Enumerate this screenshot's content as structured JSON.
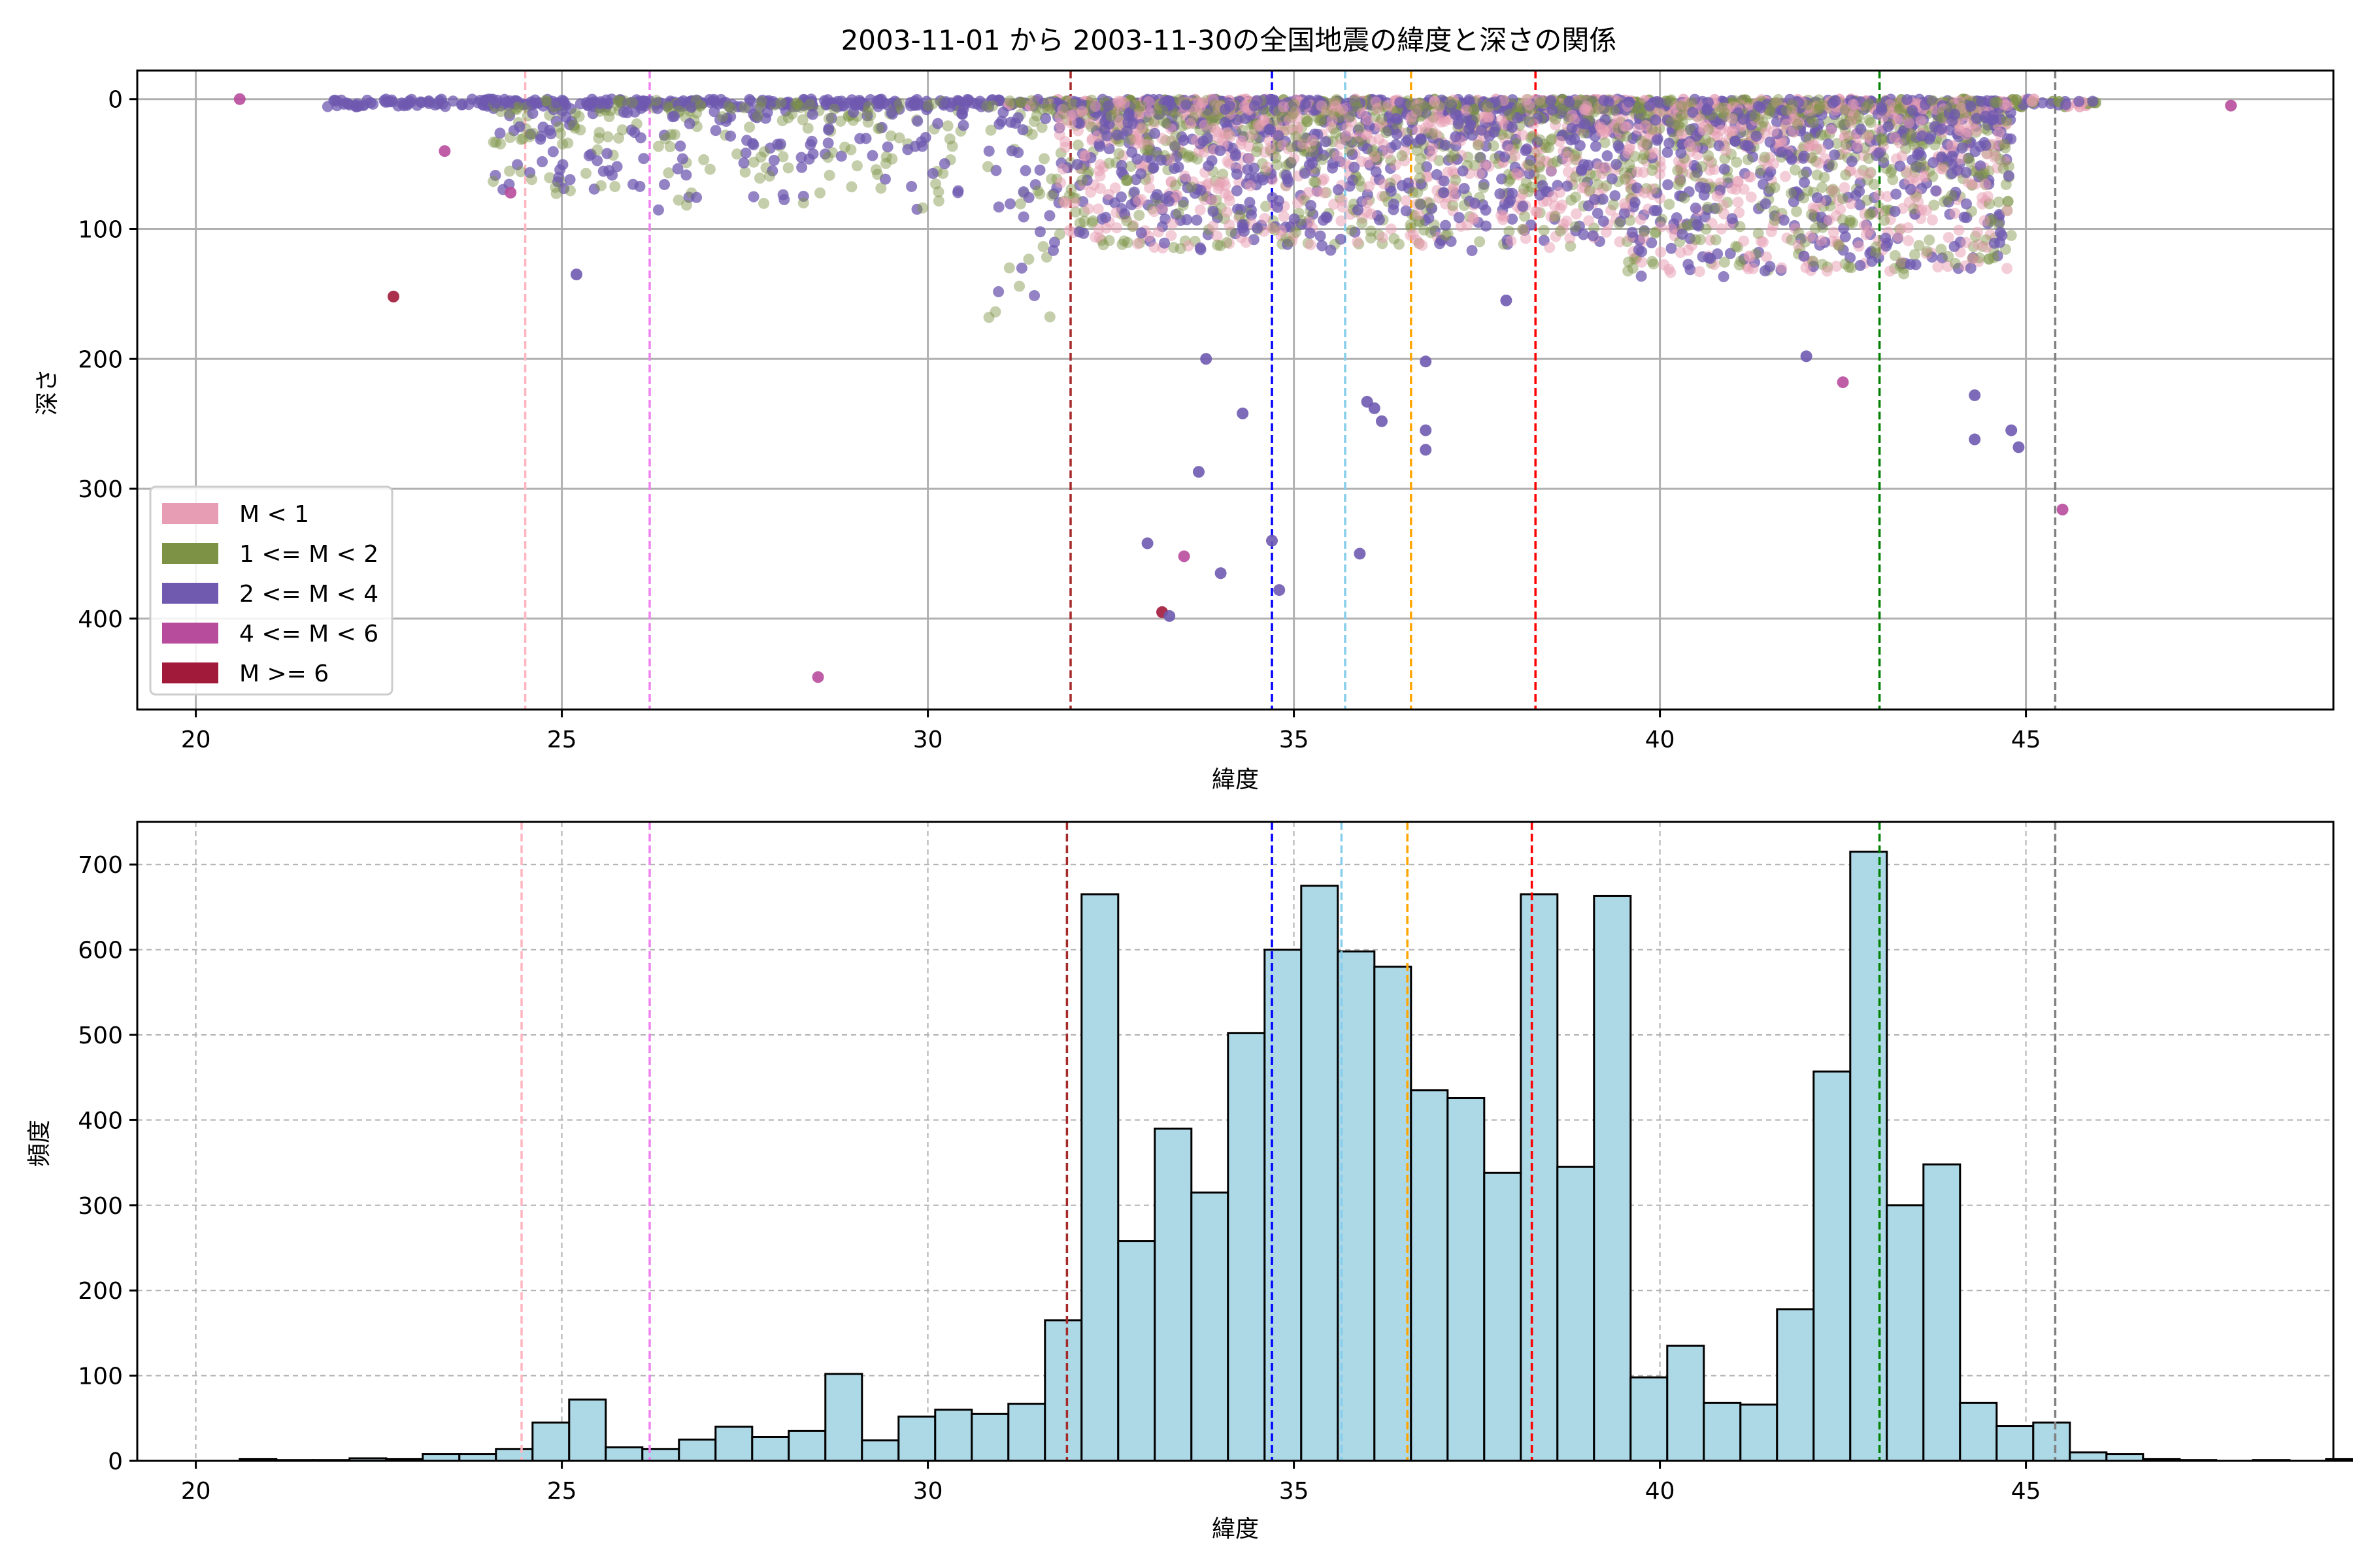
{
  "figure": {
    "title": "2003-11-01 から 2003-11-30の全国地震の緯度と深さの関係"
  },
  "chart_data": [
    {
      "type": "scatter",
      "xlabel": "緯度",
      "ylabel": "深さ",
      "xlim": [
        19.2,
        49.2
      ],
      "ylim": [
        470,
        -22
      ],
      "y_inverted": true,
      "x_ticks": [
        20,
        25,
        30,
        35,
        40,
        45
      ],
      "y_ticks": [
        0,
        100,
        200,
        300,
        400
      ],
      "grid": true,
      "legend_position": "lower-left",
      "series": [
        {
          "name": "M < 1",
          "color": "#e79db4"
        },
        {
          "name": "1 <= M < 2",
          "color": "#7d9244"
        },
        {
          "name": "2 <= M < 4",
          "color": "#6f5ab0"
        },
        {
          "name": "4 <= M < 6",
          "color": "#b84c9c"
        },
        {
          "name": "M >= 6",
          "color": "#a11a3a"
        }
      ],
      "outlier_points": [
        {
          "x": 20.6,
          "y": 0,
          "series": 3
        },
        {
          "x": 22.7,
          "y": 152,
          "series": 4
        },
        {
          "x": 23.4,
          "y": 40,
          "series": 3
        },
        {
          "x": 24.3,
          "y": 72,
          "series": 3
        },
        {
          "x": 25.2,
          "y": 135,
          "series": 2
        },
        {
          "x": 28.5,
          "y": 445,
          "series": 3
        },
        {
          "x": 33.0,
          "y": 342,
          "series": 2
        },
        {
          "x": 33.2,
          "y": 395,
          "series": 4
        },
        {
          "x": 33.3,
          "y": 398,
          "series": 2
        },
        {
          "x": 33.5,
          "y": 352,
          "series": 3
        },
        {
          "x": 33.7,
          "y": 287,
          "series": 2
        },
        {
          "x": 33.8,
          "y": 200,
          "series": 2
        },
        {
          "x": 34.0,
          "y": 365,
          "series": 2
        },
        {
          "x": 34.3,
          "y": 242,
          "series": 2
        },
        {
          "x": 34.7,
          "y": 340,
          "series": 2
        },
        {
          "x": 34.8,
          "y": 378,
          "series": 2
        },
        {
          "x": 35.9,
          "y": 350,
          "series": 2
        },
        {
          "x": 36.0,
          "y": 233,
          "series": 2
        },
        {
          "x": 36.1,
          "y": 238,
          "series": 2
        },
        {
          "x": 36.2,
          "y": 248,
          "series": 2
        },
        {
          "x": 36.8,
          "y": 270,
          "series": 2
        },
        {
          "x": 36.8,
          "y": 255,
          "series": 2
        },
        {
          "x": 36.8,
          "y": 202,
          "series": 2
        },
        {
          "x": 37.9,
          "y": 155,
          "series": 2
        },
        {
          "x": 42.0,
          "y": 198,
          "series": 2
        },
        {
          "x": 42.5,
          "y": 218,
          "series": 3
        },
        {
          "x": 44.3,
          "y": 228,
          "series": 2
        },
        {
          "x": 44.3,
          "y": 262,
          "series": 2
        },
        {
          "x": 44.8,
          "y": 255,
          "series": 2
        },
        {
          "x": 44.9,
          "y": 268,
          "series": 2
        },
        {
          "x": 45.5,
          "y": 316,
          "series": 3
        },
        {
          "x": 47.8,
          "y": 5,
          "series": 3
        }
      ],
      "vlines": [
        {
          "x": 24.5,
          "color": "#ffb6c1"
        },
        {
          "x": 26.2,
          "color": "#ee82ee"
        },
        {
          "x": 31.95,
          "color": "#a52a2a"
        },
        {
          "x": 34.7,
          "color": "#0000ff"
        },
        {
          "x": 35.7,
          "color": "#87ceeb"
        },
        {
          "x": 36.6,
          "color": "#ffa500"
        },
        {
          "x": 38.3,
          "color": "#ff0000"
        },
        {
          "x": 43.0,
          "color": "#008000"
        },
        {
          "x": 45.4,
          "color": "#808080"
        }
      ]
    },
    {
      "type": "bar",
      "xlabel": "緯度",
      "ylabel": "頻度",
      "xlim": [
        19.2,
        49.2
      ],
      "ylim": [
        0,
        750
      ],
      "x_ticks": [
        20,
        25,
        30,
        35,
        40,
        45
      ],
      "y_ticks": [
        0,
        100,
        200,
        300,
        400,
        500,
        600,
        700
      ],
      "grid": true,
      "bar_color": "#add8e6",
      "edge_color": "#000000",
      "bin_width": 0.5,
      "bin_edges_start": 20.6,
      "values": [
        2,
        1,
        1,
        3,
        2,
        8,
        8,
        14,
        45,
        72,
        16,
        14,
        25,
        40,
        28,
        35,
        102,
        24,
        52,
        60,
        55,
        67,
        165,
        665,
        258,
        390,
        315,
        502,
        600,
        675,
        598,
        580,
        435,
        426,
        338,
        665,
        345,
        663,
        98,
        135,
        68,
        66,
        178,
        457,
        715,
        300,
        348,
        68,
        41,
        45,
        10,
        8,
        2,
        1,
        0,
        1,
        0,
        2
      ],
      "vlines": [
        {
          "x": 24.45,
          "color": "#ffb6c1"
        },
        {
          "x": 26.2,
          "color": "#ee82ee"
        },
        {
          "x": 31.9,
          "color": "#a52a2a"
        },
        {
          "x": 34.7,
          "color": "#0000ff"
        },
        {
          "x": 35.65,
          "color": "#87ceeb"
        },
        {
          "x": 36.55,
          "color": "#ffa500"
        },
        {
          "x": 38.25,
          "color": "#ff0000"
        },
        {
          "x": 43.0,
          "color": "#008000"
        },
        {
          "x": 45.4,
          "color": "#808080"
        }
      ]
    }
  ]
}
